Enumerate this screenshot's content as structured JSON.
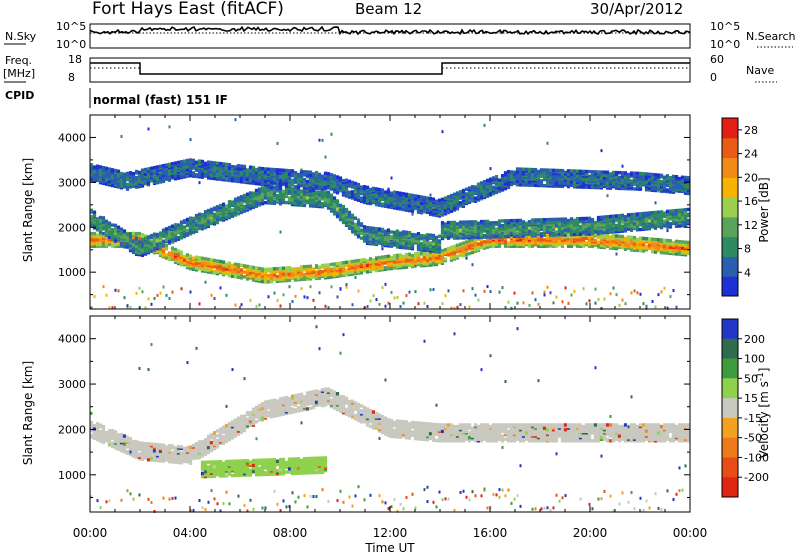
{
  "header": {
    "station": "Fort Hays East (fitACF)",
    "beam": "Beam 12",
    "date": "30/Apr/2012"
  },
  "status_panels": {
    "nsky_label": "N.Sky",
    "nsky_ticks": [
      "10^5",
      "10^0"
    ],
    "nsearch_label": "N.Search",
    "nsearch_ticks": [
      "10^5",
      "10^0"
    ],
    "freq_label_line1": "Freq.",
    "freq_label_line2": "[MHz]",
    "freq_ticks": [
      "18",
      "8"
    ],
    "nave_label": "Nave",
    "nave_ticks": [
      "60",
      "0"
    ],
    "cpid_label": "CPID",
    "cpid_value": "normal (fast) 151 IF"
  },
  "x_ticks": [
    "00:00",
    "04:00",
    "08:00",
    "12:00",
    "16:00",
    "20:00",
    "00:00"
  ],
  "x_axis_label": "Time UT",
  "colors": {
    "power": [
      "#1f2fd6",
      "#2a5fb0",
      "#2e8a63",
      "#5aa35a",
      "#9ad04e",
      "#f4b400",
      "#f28a18",
      "#ea5b18",
      "#e22016"
    ],
    "velocity": [
      "#2337c6",
      "#2f6b4f",
      "#3e9c3e",
      "#8fd14c",
      "#c9c9c0",
      "#f2a21f",
      "#ef7a1c",
      "#e94d16",
      "#e02512"
    ]
  },
  "chart_data": [
    {
      "type": "heatmap",
      "ylabel": "Slant Range [km]",
      "xlabel": "",
      "yticks": [
        1000,
        2000,
        3000,
        4000
      ],
      "xlim_hours": [
        0,
        24
      ],
      "ylim_km": [
        180,
        4500
      ],
      "colorbar": {
        "label": "Power [dB]",
        "ticks": [
          4,
          8,
          12,
          16,
          20,
          24,
          28
        ],
        "range": [
          0,
          30
        ]
      },
      "bands": [
        {
          "name": "main",
          "range_km": [
            [
              0,
              1700
            ],
            [
              2,
              1700
            ],
            [
              4,
              1200
            ],
            [
              7,
              900
            ],
            [
              9.5,
              1000
            ],
            [
              12,
              1200
            ],
            [
              14,
              1300
            ],
            [
              16,
              1700
            ],
            [
              20,
              1700
            ],
            [
              24,
              1500
            ]
          ],
          "value_db": 26
        },
        {
          "name": "upper",
          "range_km": [
            [
              0,
              2200
            ],
            [
              2,
              1500
            ],
            [
              4,
              2000
            ],
            [
              7,
              2700
            ],
            [
              9.5,
              2600
            ],
            [
              11,
              1800
            ],
            [
              14,
              1600
            ],
            [
              14.01,
              1900
            ],
            [
              20,
              2000
            ],
            [
              24,
              2200
            ]
          ],
          "value_db": 10
        },
        {
          "name": "top",
          "range_km": [
            [
              0,
              3200
            ],
            [
              1.5,
              3000
            ],
            [
              4,
              3300
            ],
            [
              7,
              3100
            ],
            [
              9.5,
              3000
            ],
            [
              11,
              2700
            ],
            [
              14,
              2400
            ],
            [
              17,
              3100
            ],
            [
              22,
              3000
            ],
            [
              24,
              2900
            ]
          ],
          "value_db": 6
        }
      ]
    },
    {
      "type": "heatmap",
      "ylabel": "Slant Range [km]",
      "xlabel": "Time UT",
      "yticks": [
        1000,
        2000,
        3000,
        4000
      ],
      "xlim_hours": [
        0,
        24
      ],
      "ylim_km": [
        180,
        4500
      ],
      "colorbar": {
        "label": "Velocity [m s^-1]",
        "ticks": [
          200,
          100,
          50,
          15,
          -15,
          -50,
          -100,
          -200
        ],
        "range": [
          -250,
          250
        ]
      },
      "bands": [
        {
          "name": "ground_scatter",
          "range_km": [
            [
              0,
              2000
            ],
            [
              2,
              1500
            ],
            [
              4,
              1400
            ],
            [
              7,
              2400
            ],
            [
              9.5,
              2700
            ],
            [
              12,
              2000
            ],
            [
              14,
              1900
            ],
            [
              24,
              1900
            ]
          ],
          "value_ms": 0
        },
        {
          "name": "flow",
          "range_km": [
            [
              4.5,
              1100
            ],
            [
              9.5,
              1200
            ]
          ],
          "value_ms": 40
        }
      ]
    }
  ]
}
